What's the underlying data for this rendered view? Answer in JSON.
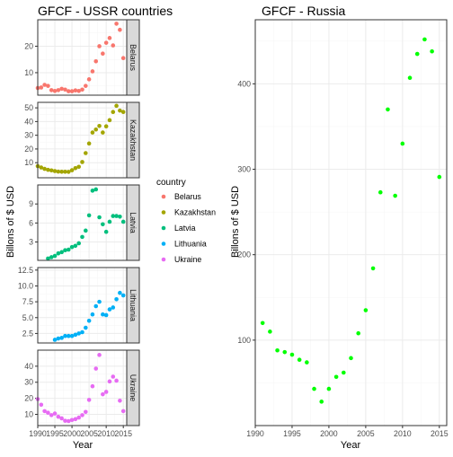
{
  "colors": {
    "Belarus": "#F8766D",
    "Kazakhstan": "#A3A500",
    "Latvia": "#00BF7D",
    "Lithuania": "#00B0F6",
    "Ukraine": "#E76BF3",
    "Russia": "#00FF00",
    "strip": "#D9D9D9",
    "grid_major": "#EBEBEB",
    "grid_minor": "#F5F5F5"
  },
  "legend": {
    "title": "country",
    "items": [
      "Belarus",
      "Kazakhstan",
      "Latvia",
      "Lithuania",
      "Ukraine"
    ]
  },
  "chart_data": [
    {
      "type": "scatter",
      "title": "GFCF - USSR countries",
      "xlabel": "Year",
      "ylabel": "Billons of $ USD",
      "x_ticks": [
        1990,
        1995,
        2000,
        2005,
        2010,
        2015
      ],
      "x_tick_labels": [
        "1990",
        "1995",
        "2000",
        "2005",
        "2010",
        "2015"
      ],
      "xlim": [
        1990,
        2016
      ],
      "grid": true,
      "facet": "rows",
      "panels": [
        {
          "name": "Belarus",
          "ylim": [
            1.5,
            30
          ],
          "y_ticks": [
            10,
            20
          ],
          "x": [
            1990,
            1991,
            1992,
            1993,
            1994,
            1995,
            1996,
            1997,
            1998,
            1999,
            2000,
            2001,
            2002,
            2003,
            2004,
            2005,
            2006,
            2007,
            2008,
            2009,
            2010,
            2011,
            2012,
            2013,
            2014,
            2015
          ],
          "values": [
            4.2,
            4.4,
            5.4,
            5.0,
            3.4,
            3.1,
            3.4,
            3.9,
            3.6,
            3.0,
            3.0,
            3.3,
            3.1,
            3.6,
            5.0,
            7.5,
            10.5,
            14.3,
            20.0,
            17.2,
            21.3,
            23.1,
            20.3,
            28.5,
            26.2,
            15.5
          ]
        },
        {
          "name": "Kazakhstan",
          "ylim": [
            -1,
            54
          ],
          "y_ticks": [
            10,
            20,
            30,
            40,
            50
          ],
          "x": [
            1990,
            1991,
            1992,
            1993,
            1994,
            1995,
            1996,
            1997,
            1998,
            1999,
            2000,
            2001,
            2002,
            2003,
            2004,
            2005,
            2006,
            2007,
            2008,
            2009,
            2010,
            2011,
            2012,
            2013,
            2014,
            2015
          ],
          "values": [
            7.5,
            6.5,
            5.5,
            4.8,
            4.4,
            3.9,
            3.5,
            3.4,
            3.4,
            3.3,
            4.5,
            6.0,
            7.0,
            10.5,
            17.0,
            24.0,
            32.0,
            34.2,
            36.8,
            32.0,
            36.5,
            41.0,
            47.0,
            51.5,
            48.0,
            47.0
          ]
        },
        {
          "name": "Latvia",
          "ylim": [
            0.1,
            12
          ],
          "y_ticks": [
            3,
            6,
            9
          ],
          "x": [
            1993,
            1994,
            1995,
            1996,
            1997,
            1998,
            1999,
            2000,
            2001,
            2002,
            2003,
            2004,
            2005,
            2006,
            2007,
            2008,
            2009,
            2010,
            2011,
            2012,
            2013,
            2014,
            2015
          ],
          "values": [
            0.4,
            0.6,
            0.8,
            1.2,
            1.4,
            1.7,
            1.8,
            2.2,
            2.4,
            2.8,
            3.8,
            4.8,
            7.2,
            11.1,
            11.3,
            6.9,
            5.8,
            4.6,
            6.2,
            7.1,
            7.1,
            7.0,
            6.2
          ]
        },
        {
          "name": "Lithuania",
          "ylim": [
            1.0,
            12.9
          ],
          "y_ticks": [
            2.5,
            5.0,
            7.5,
            10.0,
            12.5
          ],
          "x": [
            1995,
            1996,
            1997,
            1998,
            1999,
            2000,
            2001,
            2002,
            2003,
            2004,
            2005,
            2006,
            2007,
            2008,
            2009,
            2010,
            2011,
            2012,
            2013,
            2014,
            2015
          ],
          "values": [
            1.5,
            1.7,
            1.8,
            2.1,
            2.1,
            2.1,
            2.3,
            2.5,
            2.7,
            3.4,
            4.5,
            5.5,
            6.8,
            7.5,
            5.5,
            5.4,
            6.3,
            6.6,
            7.9,
            8.9,
            8.5
          ]
        },
        {
          "name": "Ukraine",
          "ylim": [
            3,
            50
          ],
          "y_ticks": [
            10,
            20,
            30,
            40
          ],
          "x": [
            1990,
            1991,
            1992,
            1993,
            1994,
            1995,
            1996,
            1997,
            1998,
            1999,
            2000,
            2001,
            2002,
            2003,
            2004,
            2005,
            2006,
            2007,
            2008,
            2009,
            2010,
            2011,
            2012,
            2013,
            2014,
            2015
          ],
          "values": [
            19.5,
            16.0,
            12.0,
            11.0,
            9.5,
            10.5,
            8.5,
            7.5,
            6.0,
            5.8,
            6.5,
            7.0,
            8.0,
            9.5,
            11.5,
            19.0,
            27.5,
            38.5,
            47.0,
            22.5,
            24.0,
            30.5,
            33.5,
            31.0,
            18.5,
            12.0
          ]
        }
      ]
    },
    {
      "type": "scatter",
      "title": "GFCF - Russia",
      "xlabel": "Year",
      "ylabel": "Billons of $ USD",
      "x_ticks": [
        1990,
        1995,
        2000,
        2005,
        2010,
        2015
      ],
      "x_tick_labels": [
        "1990",
        "1995",
        "2000",
        "2005",
        "2010",
        "2015"
      ],
      "xlim": [
        1990,
        2016
      ],
      "ylim": [
        0,
        475
      ],
      "y_ticks": [
        100,
        200,
        300,
        400
      ],
      "grid": true,
      "series": [
        {
          "name": "Russia",
          "x": [
            1991,
            1992,
            1993,
            1994,
            1995,
            1996,
            1997,
            1998,
            1999,
            2000,
            2001,
            2002,
            2003,
            2004,
            2005,
            2006,
            2007,
            2008,
            2009,
            2010,
            2011,
            2012,
            2013,
            2014,
            2015
          ],
          "values": [
            120,
            110,
            88,
            86,
            83,
            77,
            74,
            43,
            28,
            43,
            57,
            62,
            79,
            108,
            135,
            184,
            273,
            370,
            269,
            330,
            407,
            435,
            452,
            438,
            291
          ]
        }
      ]
    }
  ]
}
